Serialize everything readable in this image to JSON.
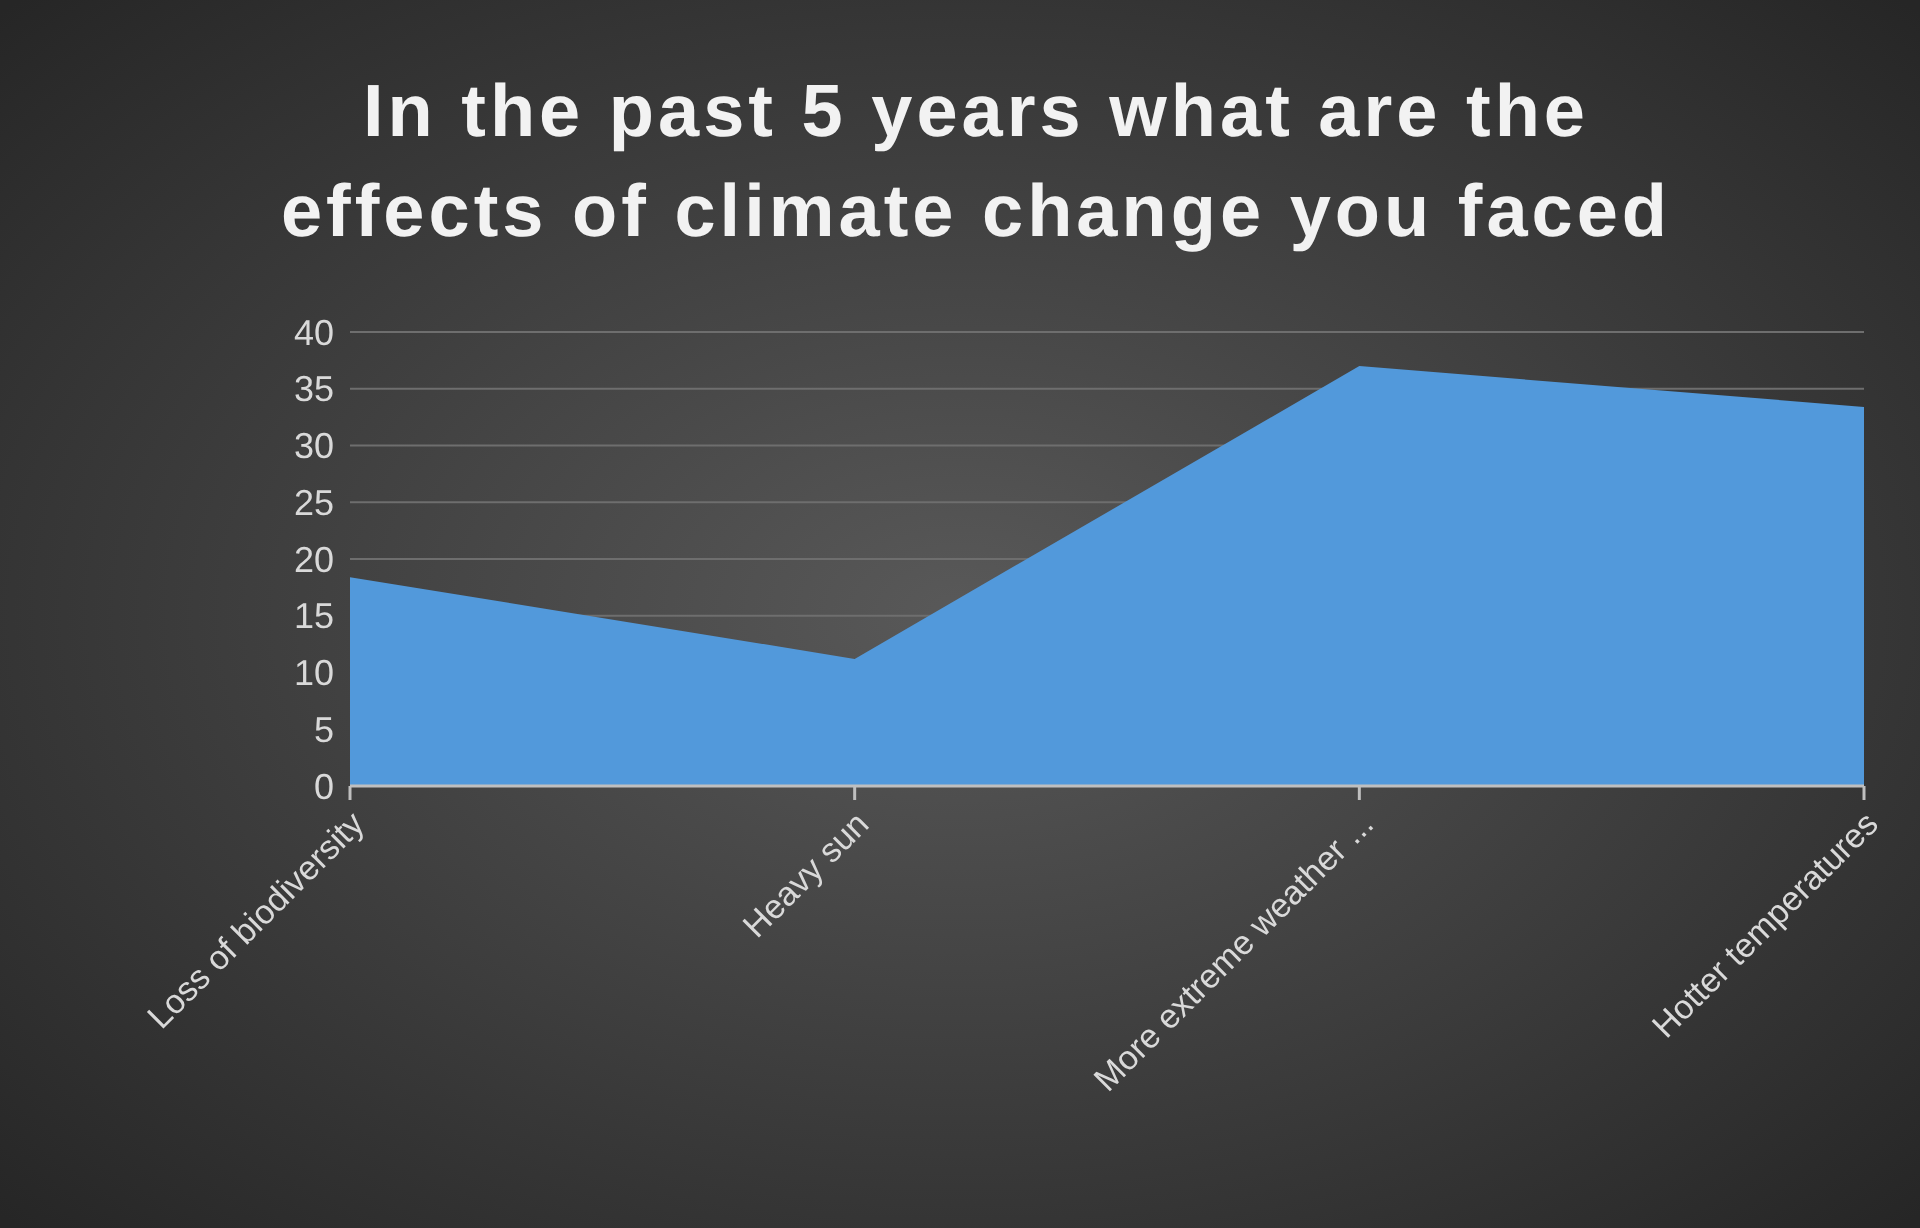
{
  "chart_data": {
    "type": "area",
    "title": "In the past 5 years what are the effects of climate change you faced",
    "categories": [
      "Loss of biodiversity",
      "Heavy sun",
      "More extreme weather ...",
      "Hotter temperatures"
    ],
    "series": [
      {
        "color": "#5299db",
        "values": [
          18.4,
          11.2,
          37.0,
          33.4
        ]
      }
    ],
    "ylim": [
      0,
      40
    ],
    "yticks": [
      0,
      5,
      10,
      15,
      20,
      25,
      30,
      35,
      40
    ],
    "grid": "y"
  }
}
